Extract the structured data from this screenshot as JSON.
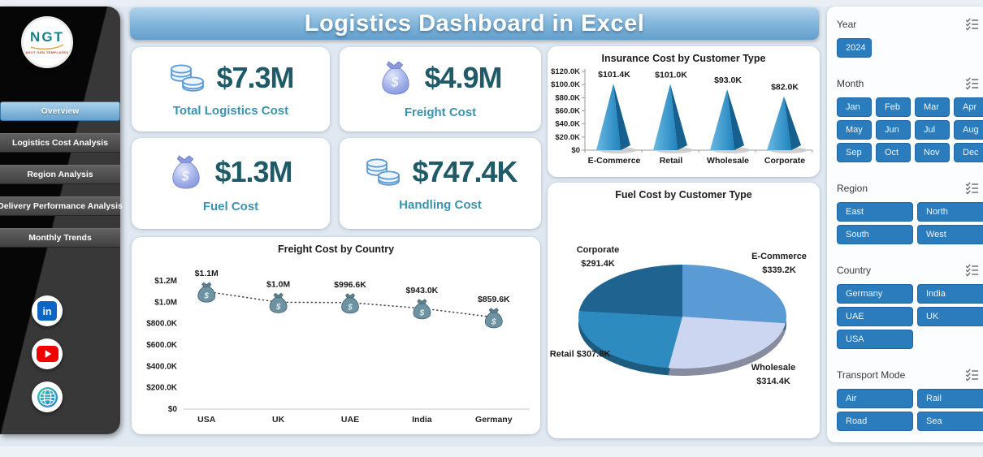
{
  "sidebar": {
    "logo": {
      "text": "NGT",
      "subtext": "NEXT GEN TEMPLATES"
    },
    "nav": [
      {
        "label": "Overview",
        "active": true
      },
      {
        "label": "Logistics Cost Analysis",
        "active": false
      },
      {
        "label": "Region Analysis",
        "active": false
      },
      {
        "label": "Delivery Performance Analysis",
        "active": false
      },
      {
        "label": "Monthly Trends",
        "active": false
      }
    ],
    "social": [
      {
        "name": "linkedin-icon"
      },
      {
        "name": "youtube-icon"
      },
      {
        "name": "website-icon"
      }
    ]
  },
  "header": {
    "title": "Logistics Dashboard in Excel"
  },
  "kpis": [
    {
      "value": "$7.3M",
      "label": "Total Logistics Cost",
      "icon": "coins-icon"
    },
    {
      "value": "$4.9M",
      "label": "Freight Cost",
      "icon": "money-bag-icon"
    },
    {
      "value": "$1.3M",
      "label": "Fuel Cost",
      "icon": "money-bag-icon"
    },
    {
      "value": "$747.4K",
      "label": "Handling Cost",
      "icon": "coins-icon"
    }
  ],
  "chart_data": [
    {
      "type": "bar",
      "variant": "3d-pyramid",
      "title": "Insurance Cost by Customer Type",
      "categories": [
        "E-Commerce",
        "Retail",
        "Wholesale",
        "Corporate"
      ],
      "values": [
        101.4,
        101.0,
        93.0,
        82.0
      ],
      "value_labels": [
        "$101.4K",
        "$101.0K",
        "$93.0K",
        "$82.0K"
      ],
      "unit": "thousand USD",
      "ylim": [
        0,
        120
      ],
      "ytick_labels": [
        "$0",
        "$20.0K",
        "$40.0K",
        "$60.0K",
        "$80.0K",
        "$100.0K",
        "$120.0K"
      ],
      "grid": false,
      "bar_color": "#2e93cf"
    },
    {
      "type": "line",
      "variant": "dotted-line-moneybag-markers",
      "title": "Freight Cost by Country",
      "categories": [
        "USA",
        "UK",
        "UAE",
        "India",
        "Germany"
      ],
      "values": [
        1100,
        1000,
        996.6,
        943.0,
        859.6
      ],
      "value_labels": [
        "$1.1M",
        "$1.0M",
        "$996.6K",
        "$943.0K",
        "$859.6K"
      ],
      "unit": "thousand USD",
      "ylim": [
        0,
        1200
      ],
      "ytick_labels": [
        "$0",
        "$200.0K",
        "$400.0K",
        "$600.0K",
        "$800.0K",
        "$1.0M",
        "$1.2M"
      ],
      "grid": false
    },
    {
      "type": "pie",
      "variant": "3d",
      "title": "Fuel Cost by Customer Type",
      "slices": [
        {
          "label": "E-Commerce",
          "value": 339.2,
          "value_label": "$339.2K",
          "color": "#5b9bd5"
        },
        {
          "label": "Wholesale",
          "value": 314.4,
          "value_label": "$314.4K",
          "color": "#ccd6f0"
        },
        {
          "label": "Retail",
          "value": 307.8,
          "value_label": "$307.8K",
          "color": "#2e8bc0"
        },
        {
          "label": "Corporate",
          "value": 291.4,
          "value_label": "$291.4K",
          "color": "#1f6391"
        }
      ],
      "legend": "data-labels-outside"
    }
  ],
  "filter_icons": [
    "multiselect-icon",
    "clear-filter-icon"
  ],
  "filters": [
    {
      "label": "Year",
      "cols": 4,
      "options": [
        "2024"
      ]
    },
    {
      "label": "Month",
      "cols": 4,
      "options": [
        "Jan",
        "Feb",
        "Mar",
        "Apr",
        "May",
        "Jun",
        "Jul",
        "Aug",
        "Sep",
        "Oct",
        "Nov",
        "Dec"
      ]
    },
    {
      "label": "Region",
      "cols": 2,
      "options": [
        "East",
        "North",
        "South",
        "West"
      ]
    },
    {
      "label": "Country",
      "cols": 2,
      "options": [
        "Germany",
        "India",
        "UAE",
        "UK",
        "USA"
      ]
    },
    {
      "label": "Transport Mode",
      "cols": 2,
      "options": [
        "Air",
        "Rail",
        "Road",
        "Sea"
      ]
    }
  ],
  "colors": {
    "slicer_blue": "#2b7cbd",
    "kpi_value": "#1e5a68",
    "kpi_label": "#3b93ad",
    "title_bar_top": "#b2d4ec",
    "title_bar_bottom": "#639fcc",
    "pyramid_front": "#2e93cf",
    "pyramid_side": "#15608f"
  }
}
